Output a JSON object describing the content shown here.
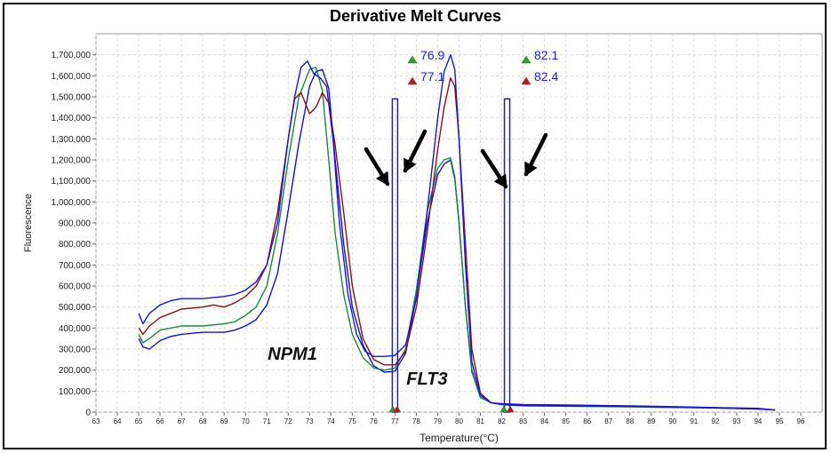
{
  "chart_data": {
    "type": "line",
    "title": "Derivative Melt Curves",
    "xlabel": "Temperature(°C)",
    "ylabel": "Fluorescence",
    "xlim": [
      63,
      97
    ],
    "ylim": [
      0,
      1800000
    ],
    "grid": true,
    "x_ticks": [
      "63",
      "64",
      "65",
      "66",
      "67",
      "68",
      "69",
      "70",
      "71",
      "72",
      "73",
      "74",
      "75",
      "76",
      "77",
      "78",
      "79",
      "80",
      "81",
      "82",
      "83",
      "84",
      "85",
      "86",
      "87",
      "88",
      "89",
      "90",
      "91",
      "92",
      "93",
      "94",
      "95",
      "96"
    ],
    "y_ticks": [
      "0",
      "100,000",
      "200,000",
      "300,000",
      "400,000",
      "500,000",
      "600,000",
      "700,000",
      "800,000",
      "900,000",
      "1,000,000",
      "1,100,000",
      "1,200,000",
      "1,300,000",
      "1,400,000",
      "1,500,000",
      "1,600,000",
      "1,700,000"
    ],
    "series": [
      {
        "color": "#1010e0",
        "x": [
          65,
          65.2,
          65.5,
          66,
          66.5,
          67,
          68,
          69,
          69.5,
          70,
          70.5,
          71,
          71.5,
          72,
          72.5,
          73,
          73.3,
          73.6,
          73.9,
          74.2,
          74.6,
          75,
          75.5,
          76,
          76.5,
          77,
          77.5,
          78,
          78.5,
          79,
          79.3,
          79.6,
          79.8,
          80,
          80.3,
          80.6,
          81,
          81.5,
          82,
          82.5,
          83,
          85,
          88,
          90,
          92,
          94,
          94.8
        ],
        "y": [
          350000,
          310000,
          300000,
          340000,
          360000,
          370000,
          380000,
          380000,
          390000,
          410000,
          440000,
          510000,
          660000,
          960000,
          1280000,
          1550000,
          1620000,
          1630000,
          1540000,
          1200000,
          800000,
          500000,
          320000,
          220000,
          190000,
          195000,
          280000,
          550000,
          900000,
          1130000,
          1180000,
          1200000,
          1110000,
          900000,
          500000,
          200000,
          70000,
          45000,
          40000,
          38000,
          36000,
          34000,
          30000,
          26000,
          22000,
          18000,
          10000
        ]
      },
      {
        "color": "#1a8a3a",
        "x": [
          65,
          65.2,
          65.5,
          66,
          66.5,
          67,
          68,
          69,
          69.5,
          70,
          70.5,
          71,
          71.5,
          72,
          72.5,
          73,
          73.3,
          73.6,
          73.9,
          74.2,
          74.6,
          75,
          75.5,
          76,
          76.5,
          77,
          77.5,
          78,
          78.5,
          79,
          79.3,
          79.6,
          79.8,
          80,
          80.3,
          80.6,
          81,
          81.5,
          82,
          82.5,
          83,
          85,
          88,
          90,
          92,
          94,
          94.8
        ],
        "y": [
          370000,
          330000,
          350000,
          390000,
          400000,
          410000,
          410000,
          420000,
          430000,
          460000,
          500000,
          600000,
          850000,
          1200000,
          1500000,
          1630000,
          1640000,
          1530000,
          1200000,
          850000,
          560000,
          370000,
          260000,
          210000,
          200000,
          210000,
          300000,
          580000,
          950000,
          1160000,
          1200000,
          1210000,
          1120000,
          900000,
          500000,
          190000,
          70000,
          45000,
          35000,
          32000,
          30000,
          28000,
          25000,
          22000,
          20000,
          15000,
          10000
        ]
      },
      {
        "color": "#8b1010",
        "x": [
          65,
          65.2,
          65.5,
          66,
          66.5,
          67,
          68,
          68.5,
          69,
          69.5,
          70,
          70.5,
          71,
          71.5,
          72,
          72.3,
          72.6,
          73,
          73.3,
          73.6,
          73.9,
          74.2,
          74.6,
          75,
          75.5,
          76,
          76.5,
          77,
          77.5,
          78,
          78.5,
          79,
          79.3,
          79.6,
          79.8,
          80,
          80.3,
          80.6,
          81,
          81.5,
          82,
          82.5,
          83,
          85,
          88,
          90,
          92,
          94,
          94.8
        ],
        "y": [
          400000,
          370000,
          410000,
          450000,
          470000,
          490000,
          500000,
          510000,
          500000,
          520000,
          550000,
          600000,
          700000,
          950000,
          1300000,
          1490000,
          1520000,
          1420000,
          1450000,
          1520000,
          1470000,
          1270000,
          950000,
          600000,
          350000,
          250000,
          225000,
          225000,
          290000,
          500000,
          850000,
          1250000,
          1450000,
          1590000,
          1550000,
          1300000,
          800000,
          300000,
          90000,
          45000,
          38000,
          35000,
          32000,
          30000,
          27000,
          24000,
          20000,
          15000,
          10000
        ]
      },
      {
        "color": "#1414f0",
        "x": [
          65,
          65.2,
          65.5,
          66,
          66.5,
          67,
          68,
          69,
          69.5,
          70,
          70.5,
          71,
          71.5,
          72,
          72.3,
          72.6,
          72.9,
          73.2,
          73.5,
          73.8,
          74.1,
          74.4,
          74.8,
          75.2,
          75.6,
          76,
          76.5,
          77,
          77.5,
          78,
          78.5,
          79,
          79.3,
          79.6,
          79.8,
          80,
          80.3,
          80.6,
          81,
          81.5,
          82,
          82.5,
          83,
          85,
          88,
          90,
          92,
          94,
          94.8
        ],
        "y": [
          470000,
          420000,
          470000,
          510000,
          530000,
          540000,
          540000,
          550000,
          560000,
          580000,
          620000,
          700000,
          900000,
          1300000,
          1500000,
          1640000,
          1670000,
          1610000,
          1590000,
          1550000,
          1300000,
          900000,
          560000,
          370000,
          290000,
          265000,
          265000,
          270000,
          320000,
          540000,
          950000,
          1400000,
          1620000,
          1700000,
          1630000,
          1300000,
          700000,
          240000,
          80000,
          45000,
          38000,
          34000,
          32000,
          30000,
          27000,
          24000,
          20000,
          15000,
          10000
        ]
      }
    ],
    "markers": [
      {
        "x": 76.9,
        "label": "76.9",
        "color": "#2aa02a"
      },
      {
        "x": 77.1,
        "label": "77.1",
        "color": "#d01010"
      },
      {
        "x": 82.1,
        "label": "82.1",
        "color": "#2aa02a"
      },
      {
        "x": 82.4,
        "label": "82.4",
        "color": "#d01010"
      }
    ],
    "annotations": [
      {
        "text": "NPM1",
        "x": 72.2,
        "y": 250000
      },
      {
        "text": "FLT3",
        "x": 78.5,
        "y": 130000
      }
    ],
    "regions": [
      {
        "x": 77.0,
        "y_top": 1490000
      },
      {
        "x": 82.25,
        "y_top": 1490000
      }
    ],
    "arrow_color": "#000000"
  }
}
